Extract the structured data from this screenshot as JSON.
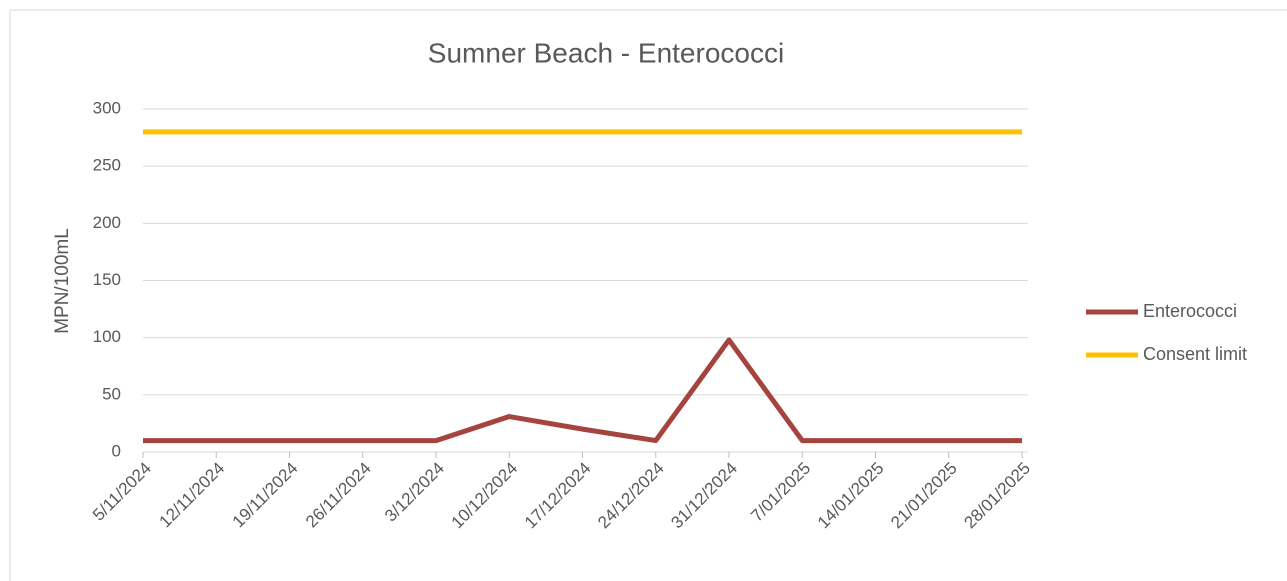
{
  "chart_data": {
    "type": "line",
    "title": "Sumner Beach - Enterococci",
    "y_label": "MPN/100mL",
    "categories": [
      "5/11/2024",
      "12/11/2024",
      "19/11/2024",
      "26/11/2024",
      "3/12/2024",
      "10/12/2024",
      "17/12/2024",
      "24/12/2024",
      "31/12/2024",
      "7/01/2025",
      "14/01/2025",
      "21/01/2025",
      "28/01/2025"
    ],
    "series": [
      {
        "name": "Enterococci",
        "color": "#a5443f",
        "values": [
          10,
          10,
          10,
          10,
          10,
          31,
          20,
          10,
          98,
          10,
          10,
          10,
          10
        ]
      },
      {
        "name": "Consent limit",
        "color": "#ffc000",
        "values": [
          280,
          280,
          280,
          280,
          280,
          280,
          280,
          280,
          280,
          280,
          280,
          280,
          280
        ]
      }
    ],
    "ylim": [
      0,
      300
    ],
    "yticks": [
      0,
      50,
      100,
      150,
      200,
      250,
      300
    ],
    "grid": true,
    "legend": "right"
  }
}
